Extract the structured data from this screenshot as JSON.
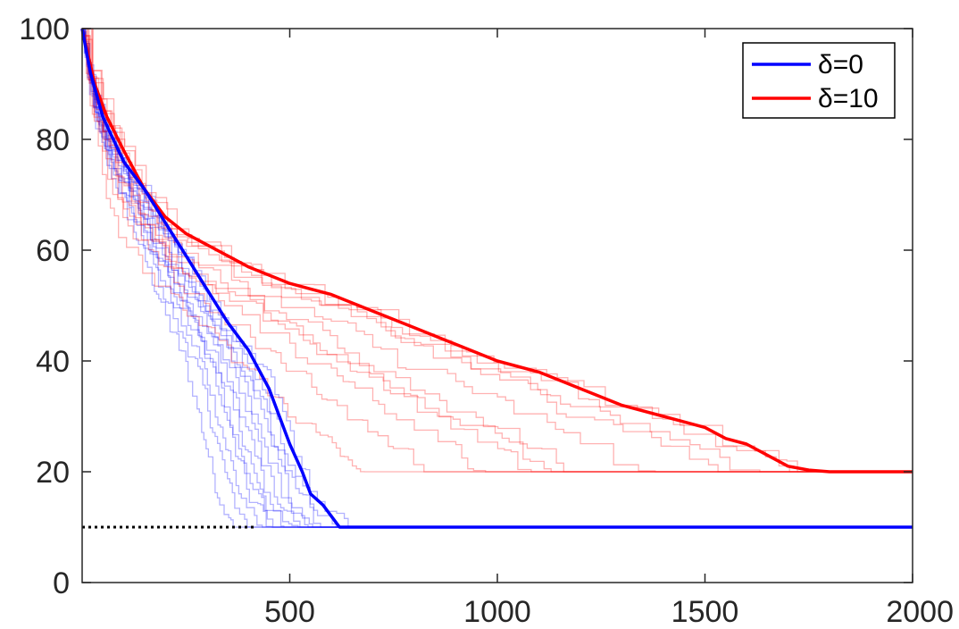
{
  "chart_data": {
    "type": "line",
    "title": "",
    "xlabel": "",
    "ylabel": "",
    "xlim": [
      0,
      2000
    ],
    "ylim": [
      0,
      100
    ],
    "x_ticks": [
      500,
      1000,
      1500,
      2000
    ],
    "y_ticks": [
      0,
      20,
      40,
      60,
      80,
      100
    ],
    "x_tick_labels": [
      "500",
      "1000",
      "1500",
      "2000"
    ],
    "y_tick_labels": [
      "0",
      "20",
      "40",
      "60",
      "80",
      "100"
    ],
    "grid": false,
    "legend_position": "top-right",
    "reference_line": {
      "y": 10,
      "x_range": [
        0,
        420
      ],
      "style": "dotted",
      "color": "#000000"
    },
    "series": [
      {
        "name": "δ=0",
        "color": "#0000ff",
        "x": [
          0,
          20,
          50,
          100,
          150,
          200,
          250,
          300,
          350,
          400,
          450,
          500,
          530,
          550,
          580,
          610,
          620,
          640,
          2000
        ],
        "y": [
          100,
          92,
          84,
          76,
          71,
          65,
          59,
          53,
          47,
          42,
          35,
          25,
          20,
          16,
          14,
          11,
          10,
          10,
          10
        ]
      },
      {
        "name": "δ=10",
        "color": "#ff0000",
        "x": [
          0,
          30,
          60,
          100,
          150,
          200,
          250,
          300,
          350,
          400,
          500,
          550,
          600,
          700,
          800,
          900,
          1000,
          1100,
          1200,
          1300,
          1400,
          1500,
          1550,
          1600,
          1650,
          1700,
          1750,
          1800,
          2000
        ],
        "y": [
          100,
          90,
          84,
          78,
          71,
          66,
          63,
          61,
          59,
          57,
          54,
          53,
          52,
          49,
          46,
          43,
          40,
          38,
          35,
          32,
          30,
          28,
          26,
          25,
          23,
          21,
          20.3,
          20,
          20
        ]
      }
    ],
    "faint_runs": [
      {
        "color": "#0000ff",
        "final_x": [
          380,
          415,
          440,
          470,
          480,
          500,
          520,
          540,
          560,
          580,
          600,
          620,
          650
        ]
      },
      {
        "color": "#ff0000",
        "final_x": [
          680,
          860,
          1000,
          1130,
          1180,
          1230,
          1400,
          1600,
          1680,
          1780,
          1800
        ]
      }
    ]
  }
}
